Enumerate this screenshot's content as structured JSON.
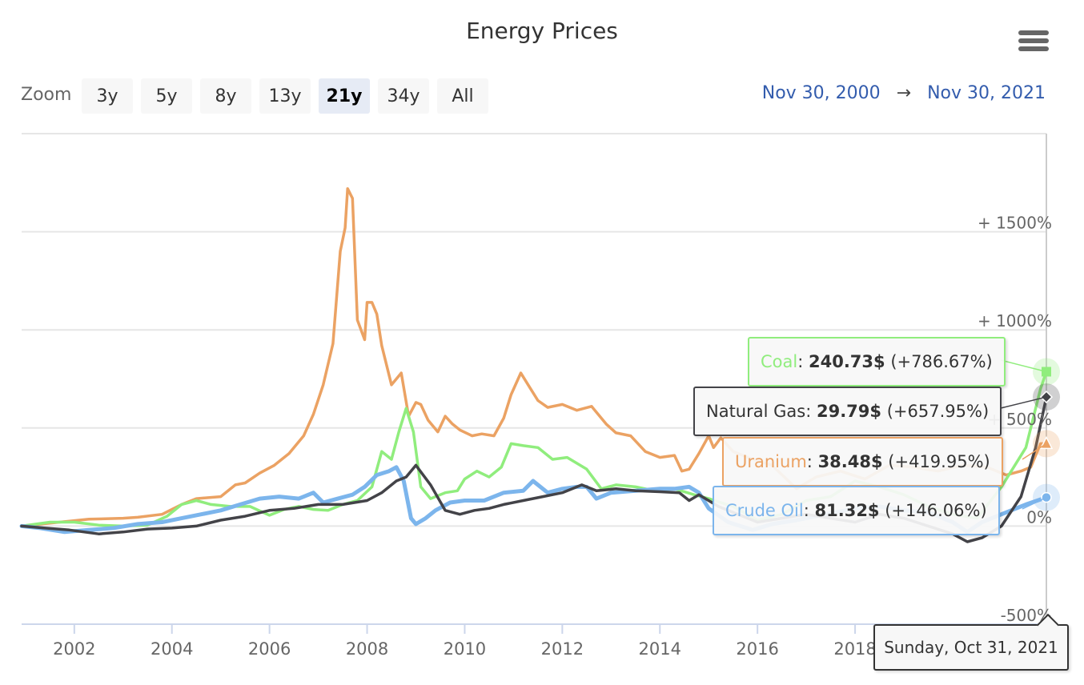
{
  "chart_data": {
    "type": "line",
    "title": "Energy Prices",
    "xlabel": "",
    "ylabel": "",
    "compare_mode": "percent",
    "x_range": [
      2000.92,
      2021.92
    ],
    "ylim": [
      -500,
      2000
    ],
    "y_ticks": [
      -500,
      0,
      500,
      1000,
      1500
    ],
    "y_tick_labels": [
      "-500%",
      "0%",
      "+ 500%",
      "+ 1000%",
      "+ 1500%"
    ],
    "x_ticks": [
      2002,
      2004,
      2006,
      2008,
      2010,
      2012,
      2014,
      2016,
      2018,
      2020
    ],
    "x_tick_labels": [
      "2002",
      "2004",
      "2006",
      "2008",
      "2010",
      "2012",
      "2014",
      "2016",
      "2018",
      "2020"
    ],
    "grid": true,
    "legend": "none",
    "series": [
      {
        "name": "Uranium",
        "color": "#eba263",
        "points": [
          [
            2000.92,
            0
          ],
          [
            2001.5,
            15
          ],
          [
            2002.3,
            35
          ],
          [
            2003,
            40
          ],
          [
            2003.3,
            45
          ],
          [
            2003.8,
            60
          ],
          [
            2004.2,
            110
          ],
          [
            2004.5,
            140
          ],
          [
            2005,
            150
          ],
          [
            2005.3,
            210
          ],
          [
            2005.5,
            220
          ],
          [
            2005.8,
            270
          ],
          [
            2006.1,
            310
          ],
          [
            2006.4,
            370
          ],
          [
            2006.7,
            460
          ],
          [
            2006.9,
            570
          ],
          [
            2007.1,
            720
          ],
          [
            2007.3,
            930
          ],
          [
            2007.45,
            1400
          ],
          [
            2007.55,
            1520
          ],
          [
            2007.6,
            1720
          ],
          [
            2007.7,
            1670
          ],
          [
            2007.8,
            1050
          ],
          [
            2007.95,
            950
          ],
          [
            2008.0,
            1140
          ],
          [
            2008.1,
            1140
          ],
          [
            2008.2,
            1080
          ],
          [
            2008.3,
            920
          ],
          [
            2008.5,
            720
          ],
          [
            2008.7,
            780
          ],
          [
            2008.85,
            560
          ],
          [
            2009.0,
            630
          ],
          [
            2009.1,
            620
          ],
          [
            2009.25,
            540
          ],
          [
            2009.45,
            480
          ],
          [
            2009.6,
            560
          ],
          [
            2009.75,
            520
          ],
          [
            2009.9,
            490
          ],
          [
            2010.15,
            460
          ],
          [
            2010.35,
            470
          ],
          [
            2010.6,
            460
          ],
          [
            2010.8,
            550
          ],
          [
            2010.95,
            670
          ],
          [
            2011.15,
            780
          ],
          [
            2011.3,
            720
          ],
          [
            2011.5,
            640
          ],
          [
            2011.7,
            605
          ],
          [
            2012.0,
            620
          ],
          [
            2012.3,
            590
          ],
          [
            2012.6,
            610
          ],
          [
            2012.9,
            520
          ],
          [
            2013.1,
            475
          ],
          [
            2013.4,
            460
          ],
          [
            2013.7,
            380
          ],
          [
            2014.0,
            350
          ],
          [
            2014.3,
            360
          ],
          [
            2014.45,
            280
          ],
          [
            2014.6,
            290
          ],
          [
            2014.8,
            370
          ],
          [
            2015.0,
            460
          ],
          [
            2015.1,
            400
          ],
          [
            2015.25,
            450
          ],
          [
            2015.5,
            380
          ],
          [
            2015.9,
            340
          ],
          [
            2016.3,
            310
          ],
          [
            2016.8,
            190
          ],
          [
            2017.2,
            250
          ],
          [
            2017.7,
            280
          ],
          [
            2018.2,
            240
          ],
          [
            2018.7,
            310
          ],
          [
            2019.2,
            300
          ],
          [
            2019.7,
            280
          ],
          [
            2020.2,
            310
          ],
          [
            2020.7,
            300
          ],
          [
            2021.1,
            260
          ],
          [
            2021.4,
            280
          ],
          [
            2021.6,
            300
          ],
          [
            2021.8,
            420
          ],
          [
            2021.92,
            419.95
          ]
        ]
      },
      {
        "name": "Coal",
        "color": "#90ed7d",
        "points": [
          [
            2000.92,
            0
          ],
          [
            2001.5,
            20
          ],
          [
            2002,
            20
          ],
          [
            2002.5,
            5
          ],
          [
            2003,
            0
          ],
          [
            2003.5,
            5
          ],
          [
            2003.9,
            50
          ],
          [
            2004.2,
            110
          ],
          [
            2004.5,
            130
          ],
          [
            2004.8,
            110
          ],
          [
            2005.2,
            100
          ],
          [
            2005.6,
            100
          ],
          [
            2006.0,
            55
          ],
          [
            2006.3,
            85
          ],
          [
            2006.6,
            100
          ],
          [
            2006.9,
            85
          ],
          [
            2007.2,
            80
          ],
          [
            2007.5,
            110
          ],
          [
            2007.8,
            130
          ],
          [
            2008.1,
            200
          ],
          [
            2008.3,
            380
          ],
          [
            2008.5,
            340
          ],
          [
            2008.65,
            480
          ],
          [
            2008.8,
            600
          ],
          [
            2008.95,
            480
          ],
          [
            2009.1,
            200
          ],
          [
            2009.3,
            140
          ],
          [
            2009.6,
            170
          ],
          [
            2009.85,
            180
          ],
          [
            2010.0,
            240
          ],
          [
            2010.25,
            280
          ],
          [
            2010.5,
            250
          ],
          [
            2010.75,
            300
          ],
          [
            2010.95,
            420
          ],
          [
            2011.2,
            410
          ],
          [
            2011.5,
            400
          ],
          [
            2011.8,
            340
          ],
          [
            2012.1,
            350
          ],
          [
            2012.5,
            290
          ],
          [
            2012.8,
            190
          ],
          [
            2013.1,
            210
          ],
          [
            2013.5,
            200
          ],
          [
            2013.9,
            180
          ],
          [
            2014.3,
            190
          ],
          [
            2014.7,
            160
          ],
          [
            2015.0,
            140
          ],
          [
            2015.5,
            100
          ],
          [
            2016.0,
            30
          ],
          [
            2016.5,
            60
          ],
          [
            2017.0,
            130
          ],
          [
            2017.5,
            150
          ],
          [
            2018.0,
            230
          ],
          [
            2018.5,
            200
          ],
          [
            2019.0,
            160
          ],
          [
            2019.5,
            100
          ],
          [
            2020.0,
            60
          ],
          [
            2020.5,
            40
          ],
          [
            2021.0,
            200
          ],
          [
            2021.5,
            400
          ],
          [
            2021.8,
            700
          ],
          [
            2021.92,
            786.67
          ]
        ]
      },
      {
        "name": "Crude Oil",
        "color": "#7cb5ec",
        "points": [
          [
            2000.92,
            0
          ],
          [
            2001.3,
            -10
          ],
          [
            2001.8,
            -30
          ],
          [
            2002.3,
            -20
          ],
          [
            2002.8,
            -10
          ],
          [
            2003.3,
            10
          ],
          [
            2003.8,
            20
          ],
          [
            2004.2,
            40
          ],
          [
            2004.6,
            60
          ],
          [
            2005.0,
            80
          ],
          [
            2005.4,
            110
          ],
          [
            2005.8,
            140
          ],
          [
            2006.2,
            150
          ],
          [
            2006.6,
            140
          ],
          [
            2006.9,
            170
          ],
          [
            2007.1,
            120
          ],
          [
            2007.4,
            140
          ],
          [
            2007.7,
            160
          ],
          [
            2007.95,
            200
          ],
          [
            2008.2,
            260
          ],
          [
            2008.45,
            280
          ],
          [
            2008.6,
            300
          ],
          [
            2008.75,
            230
          ],
          [
            2008.9,
            40
          ],
          [
            2009.0,
            10
          ],
          [
            2009.2,
            40
          ],
          [
            2009.4,
            80
          ],
          [
            2009.7,
            120
          ],
          [
            2010.0,
            130
          ],
          [
            2010.4,
            130
          ],
          [
            2010.8,
            170
          ],
          [
            2011.2,
            180
          ],
          [
            2011.4,
            230
          ],
          [
            2011.7,
            170
          ],
          [
            2012.0,
            190
          ],
          [
            2012.3,
            200
          ],
          [
            2012.5,
            200
          ],
          [
            2012.7,
            140
          ],
          [
            2013.0,
            170
          ],
          [
            2013.5,
            180
          ],
          [
            2014.0,
            190
          ],
          [
            2014.3,
            190
          ],
          [
            2014.6,
            200
          ],
          [
            2014.8,
            170
          ],
          [
            2015.0,
            90
          ],
          [
            2015.4,
            20
          ],
          [
            2015.9,
            -20
          ],
          [
            2016.3,
            10
          ],
          [
            2016.8,
            30
          ],
          [
            2017.4,
            60
          ],
          [
            2018.0,
            90
          ],
          [
            2018.5,
            100
          ],
          [
            2019.0,
            80
          ],
          [
            2019.5,
            70
          ],
          [
            2020.0,
            20
          ],
          [
            2020.3,
            -30
          ],
          [
            2020.6,
            20
          ],
          [
            2021.0,
            60
          ],
          [
            2021.5,
            110
          ],
          [
            2021.92,
            146.06
          ]
        ]
      },
      {
        "name": "Natural Gas",
        "color": "#434348",
        "points": [
          [
            2000.92,
            0
          ],
          [
            2001.4,
            -10
          ],
          [
            2001.9,
            -20
          ],
          [
            2002.5,
            -40
          ],
          [
            2003.0,
            -30
          ],
          [
            2003.5,
            -15
          ],
          [
            2004.0,
            -10
          ],
          [
            2004.5,
            0
          ],
          [
            2005.0,
            30
          ],
          [
            2005.5,
            50
          ],
          [
            2006.0,
            80
          ],
          [
            2006.5,
            90
          ],
          [
            2007.0,
            110
          ],
          [
            2007.5,
            110
          ],
          [
            2008.0,
            130
          ],
          [
            2008.3,
            170
          ],
          [
            2008.6,
            230
          ],
          [
            2008.8,
            250
          ],
          [
            2009.0,
            310
          ],
          [
            2009.3,
            210
          ],
          [
            2009.6,
            80
          ],
          [
            2009.9,
            60
          ],
          [
            2010.2,
            80
          ],
          [
            2010.5,
            90
          ],
          [
            2010.8,
            110
          ],
          [
            2011.2,
            130
          ],
          [
            2011.6,
            150
          ],
          [
            2012.0,
            170
          ],
          [
            2012.4,
            210
          ],
          [
            2012.7,
            180
          ],
          [
            2013.1,
            190
          ],
          [
            2013.5,
            180
          ],
          [
            2014.0,
            175
          ],
          [
            2014.4,
            170
          ],
          [
            2014.6,
            130
          ],
          [
            2014.8,
            160
          ],
          [
            2015.2,
            100
          ],
          [
            2015.6,
            60
          ],
          [
            2016.0,
            20
          ],
          [
            2016.5,
            40
          ],
          [
            2017.0,
            60
          ],
          [
            2017.5,
            40
          ],
          [
            2018.0,
            20
          ],
          [
            2018.5,
            60
          ],
          [
            2019.0,
            40
          ],
          [
            2019.5,
            0
          ],
          [
            2020.0,
            -40
          ],
          [
            2020.3,
            -80
          ],
          [
            2020.6,
            -60
          ],
          [
            2021.0,
            0
          ],
          [
            2021.4,
            150
          ],
          [
            2021.7,
            400
          ],
          [
            2021.92,
            657.95
          ]
        ]
      }
    ],
    "tooltip": {
      "date": "Sunday, Oct 31, 2021",
      "rows": [
        {
          "name": "Coal",
          "value": "240.73$",
          "change": "(+786.67%)",
          "color": "#90ed7d"
        },
        {
          "name": "Natural Gas",
          "value": "29.79$",
          "change": "(+657.95%)",
          "color": "#434348"
        },
        {
          "name": "Uranium",
          "value": "38.48$",
          "change": "(+419.95%)",
          "color": "#eba263"
        },
        {
          "name": "Crude Oil",
          "value": "81.32$",
          "change": "(+146.06%)",
          "color": "#7cb5ec"
        }
      ]
    }
  },
  "header": {
    "title": "Energy Prices",
    "menu_icon": "hamburger-menu-icon"
  },
  "range_selector": {
    "zoom_label": "Zoom",
    "buttons": [
      {
        "label": "3y",
        "active": false
      },
      {
        "label": "5y",
        "active": false
      },
      {
        "label": "8y",
        "active": false
      },
      {
        "label": "13y",
        "active": false
      },
      {
        "label": "21y",
        "active": true
      },
      {
        "label": "34y",
        "active": false
      },
      {
        "label": "All",
        "active": false
      }
    ],
    "from": "Nov 30, 2000",
    "arrow": "→",
    "to": "Nov 30, 2021",
    "accent_color": "#335cad"
  }
}
